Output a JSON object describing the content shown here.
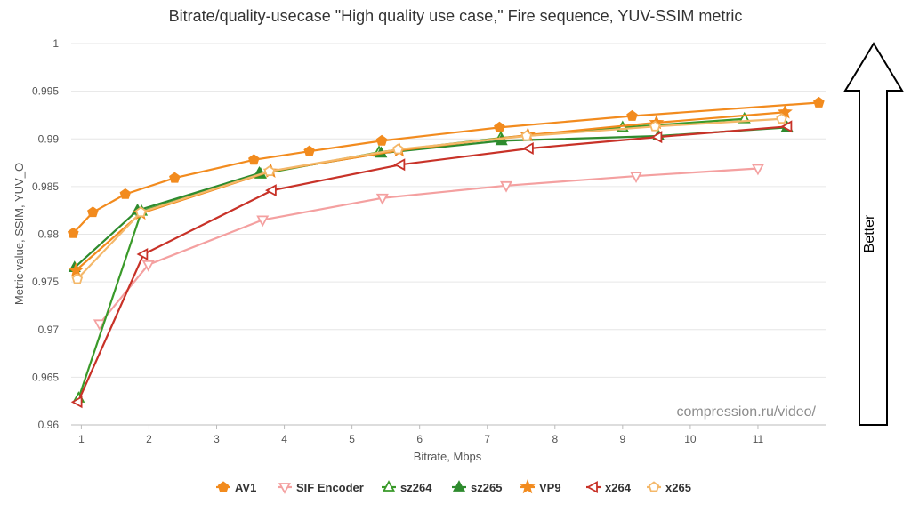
{
  "chart_data": {
    "type": "line",
    "title": "Bitrate/quality-usecase \"High quality use case,\" Fire sequence, YUV-SSIM metric",
    "xlabel": "Bitrate, Mbps",
    "ylabel": "Metric value, SSIM, YUV_O",
    "xlim": [
      0.85,
      12.0
    ],
    "ylim": [
      0.96,
      1.0
    ],
    "x_ticks": [
      1,
      2,
      3,
      4,
      5,
      6,
      7,
      8,
      9,
      10,
      11
    ],
    "y_ticks": [
      {
        "value": 0.96,
        "label": "0.96"
      },
      {
        "value": 0.965,
        "label": "0.965"
      },
      {
        "value": 0.97,
        "label": "0.97"
      },
      {
        "value": 0.975,
        "label": "0.975"
      },
      {
        "value": 0.98,
        "label": "0.98"
      },
      {
        "value": 0.985,
        "label": "0.985"
      },
      {
        "value": 0.99,
        "label": "0.99"
      },
      {
        "value": 0.995,
        "label": "0.995"
      },
      {
        "value": 1.0,
        "label": "1"
      }
    ],
    "grid": true,
    "watermark": "compression.ru/video/",
    "annotation": "Better",
    "legend_position": "bottom",
    "series": [
      {
        "name": "AV1",
        "color": "#f28b1e",
        "marker": "pentagon-filled",
        "x": [
          0.88,
          1.17,
          1.65,
          2.38,
          3.55,
          4.37,
          5.44,
          7.18,
          9.14,
          11.9
        ],
        "y": [
          0.9801,
          0.9823,
          0.9842,
          0.9859,
          0.9878,
          0.9887,
          0.9898,
          0.9912,
          0.9924,
          0.9938
        ]
      },
      {
        "name": "SIF Encoder",
        "color": "#f4a0a0",
        "marker": "triangle-down-open",
        "x": [
          1.27,
          1.99,
          3.68,
          5.45,
          7.28,
          9.2,
          11.0
        ],
        "y": [
          0.9706,
          0.9768,
          0.9815,
          0.9838,
          0.9851,
          0.9861,
          0.9869
        ]
      },
      {
        "name": "sz264",
        "color": "#3a9a2a",
        "marker": "triangle-up-open",
        "x": [
          0.96,
          1.89,
          3.65,
          5.4,
          7.2,
          9.0,
          10.8
        ],
        "y": [
          0.9628,
          0.9824,
          0.9863,
          0.9886,
          0.9901,
          0.9912,
          0.9921
        ]
      },
      {
        "name": "sz265",
        "color": "#2e8b2e",
        "marker": "triangle-up-filled",
        "x": [
          0.9,
          1.83,
          3.63,
          5.43,
          7.21,
          9.53,
          11.43
        ],
        "y": [
          0.9765,
          0.9825,
          0.9864,
          0.9885,
          0.9898,
          0.9903,
          0.9912
        ]
      },
      {
        "name": "VP9",
        "color": "#f28b1e",
        "marker": "star-filled",
        "x": [
          0.92,
          1.88,
          3.8,
          5.7,
          7.6,
          9.5,
          11.4
        ],
        "y": [
          0.9762,
          0.9822,
          0.9866,
          0.9888,
          0.9904,
          0.9917,
          0.9928
        ]
      },
      {
        "name": "x264",
        "color": "#c83228",
        "marker": "triangle-left-open",
        "x": [
          0.95,
          1.92,
          3.82,
          5.72,
          7.62,
          9.52,
          11.44
        ],
        "y": [
          0.9624,
          0.9779,
          0.9846,
          0.9873,
          0.989,
          0.9902,
          0.9913
        ]
      },
      {
        "name": "x265",
        "color": "#f4b86a",
        "marker": "pentagon-open",
        "x": [
          0.94,
          1.88,
          3.78,
          5.68,
          7.58,
          9.48,
          11.35
        ],
        "y": [
          0.9753,
          0.9823,
          0.9866,
          0.9889,
          0.9903,
          0.9913,
          0.9921
        ]
      }
    ]
  }
}
